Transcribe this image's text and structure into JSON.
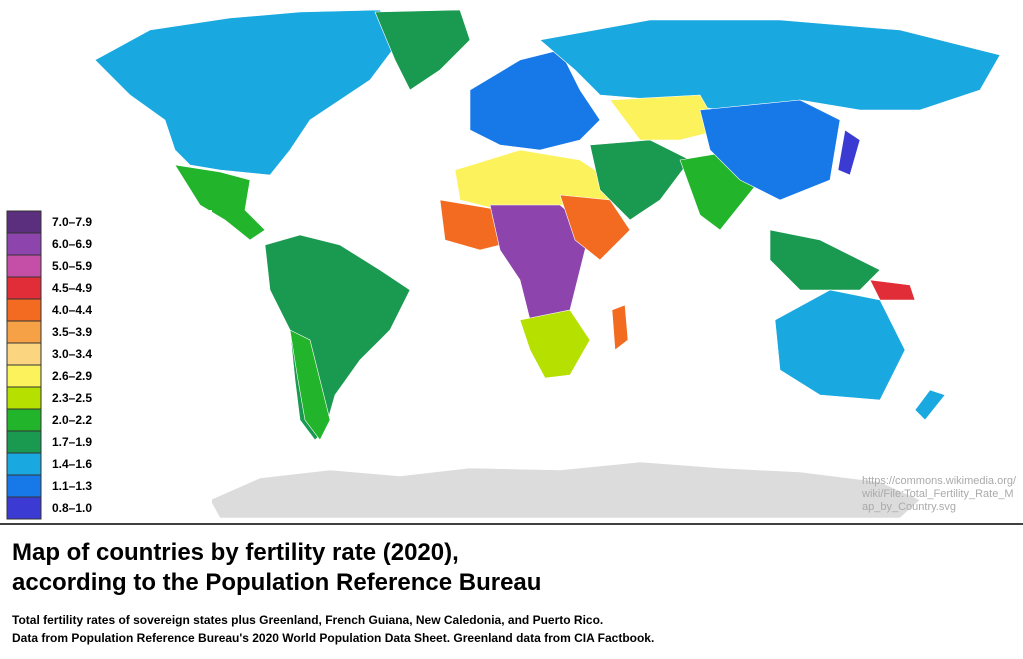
{
  "legend": {
    "items": [
      {
        "label": "7.0–7.9",
        "color": "#5b2f7e"
      },
      {
        "label": "6.0–6.9",
        "color": "#8e44ad"
      },
      {
        "label": "5.0–5.9",
        "color": "#c54fa7"
      },
      {
        "label": "4.5–4.9",
        "color": "#e02d38"
      },
      {
        "label": "4.0–4.4",
        "color": "#f26b21"
      },
      {
        "label": "3.5–3.9",
        "color": "#f7a146"
      },
      {
        "label": "3.0–3.4",
        "color": "#fcd580"
      },
      {
        "label": "2.6–2.9",
        "color": "#fcf25c"
      },
      {
        "label": "2.3–2.5",
        "color": "#b5e000"
      },
      {
        "label": "2.0–2.2",
        "color": "#22b42a"
      },
      {
        "label": "1.7–1.9",
        "color": "#1a9950"
      },
      {
        "label": "1.4–1.6",
        "color": "#19a9e0"
      },
      {
        "label": "1.1–1.3",
        "color": "#1778e8"
      },
      {
        "label": "0.8–1.0",
        "color": "#3b3bd4"
      }
    ]
  },
  "source": {
    "lines": [
      "https://commons.wikimedia.org/",
      "wiki/File:Total_Fertility_Rate_M",
      "ap_by_Country.svg"
    ]
  },
  "caption": {
    "title_lines": [
      "Map of countries by fertility rate (2020),",
      "according to the Population Reference Bureau"
    ],
    "notes": [
      "Total fertility rates of sovereign states plus Greenland, French Guiana, New Caledonia, and Puerto Rico.",
      "Data from Population Reference Bureau's 2020 World Population Data Sheet. Greenland data from CIA Factbook."
    ]
  }
}
